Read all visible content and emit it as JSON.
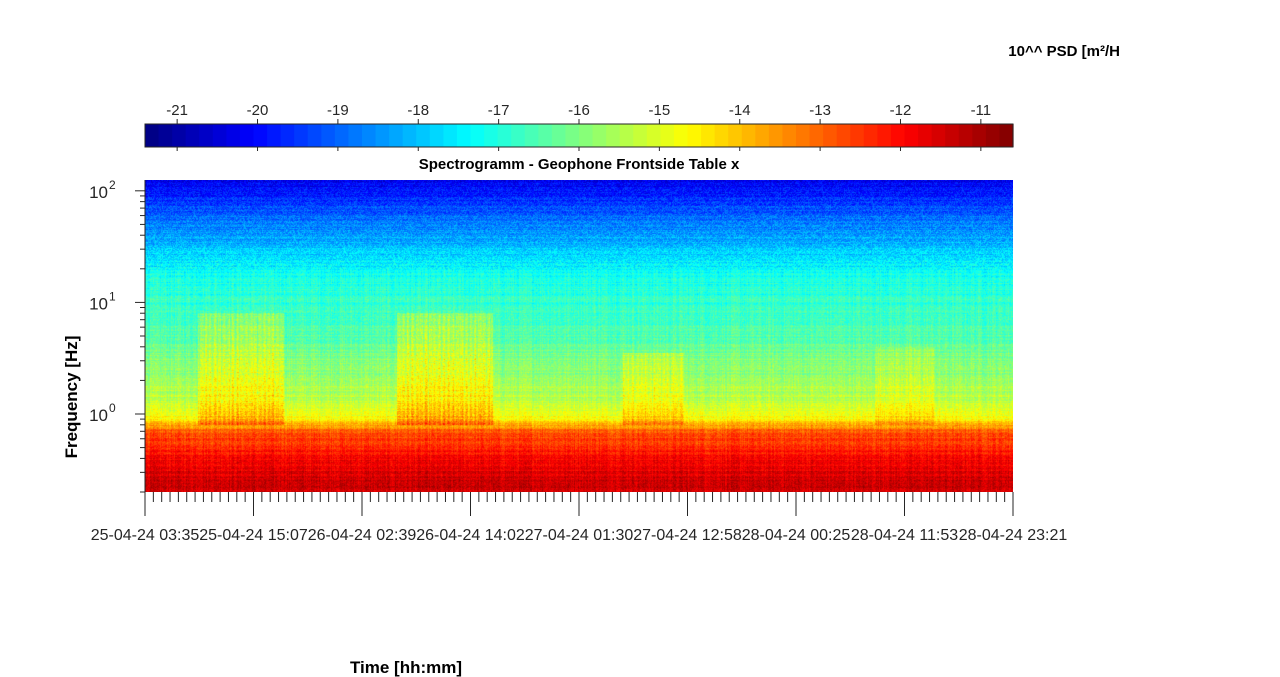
{
  "chart_data": {
    "type": "heatmap",
    "title": "Spectrogramm - Geophone Frontside Table x",
    "xlabel": "Time [hh:mm]",
    "ylabel": "Frequency [Hz]",
    "x_tick_labels": [
      "25-04-24  03:35",
      "25-04-24  15:07",
      "26-04-24  02:39",
      "26-04-24  14:02",
      "27-04-24  01:30",
      "27-04-24  12:58",
      "28-04-24  00:25",
      "28-04-24  11:53",
      "28-04-24  23:21"
    ],
    "y_scale": "log",
    "ylim": [
      0.2,
      125
    ],
    "y_ticks": [
      {
        "value": 1,
        "base": "10",
        "exp": "0"
      },
      {
        "value": 10,
        "base": "10",
        "exp": "1"
      },
      {
        "value": 100,
        "base": "10",
        "exp": "2"
      }
    ],
    "colorbar": {
      "label": "10^^ PSD [m²/H",
      "colormap": "jet",
      "clim": [
        -21.4,
        -10.6
      ],
      "ticks": [
        "-21",
        "-20",
        "-19",
        "-18",
        "-17",
        "-16",
        "-15",
        "-14",
        "-13",
        "-12",
        "-11"
      ],
      "placement": "top"
    },
    "psd_profile": [
      {
        "freq": 0.2,
        "log_psd": -11.3
      },
      {
        "freq": 0.4,
        "log_psd": -11.9
      },
      {
        "freq": 0.7,
        "log_psd": -12.9
      },
      {
        "freq": 0.9,
        "log_psd": -14.6
      },
      {
        "freq": 1.2,
        "log_psd": -15.3
      },
      {
        "freq": 3,
        "log_psd": -16.0
      },
      {
        "freq": 6,
        "log_psd": -16.6
      },
      {
        "freq": 15,
        "log_psd": -17.0
      },
      {
        "freq": 30,
        "log_psd": -17.9
      },
      {
        "freq": 60,
        "log_psd": -19.0
      },
      {
        "freq": 125,
        "log_psd": -20.3
      }
    ],
    "activity_bursts": [
      {
        "x_start": 0.06,
        "x_end": 0.16,
        "freq_top": 8,
        "boost": 1.4
      },
      {
        "x_start": 0.29,
        "x_end": 0.4,
        "freq_top": 8,
        "boost": 1.5
      },
      {
        "x_start": 0.55,
        "x_end": 0.62,
        "freq_top": 3.5,
        "boost": 1.0
      },
      {
        "x_start": 0.84,
        "x_end": 0.91,
        "freq_top": 4,
        "boost": 0.7
      }
    ]
  }
}
